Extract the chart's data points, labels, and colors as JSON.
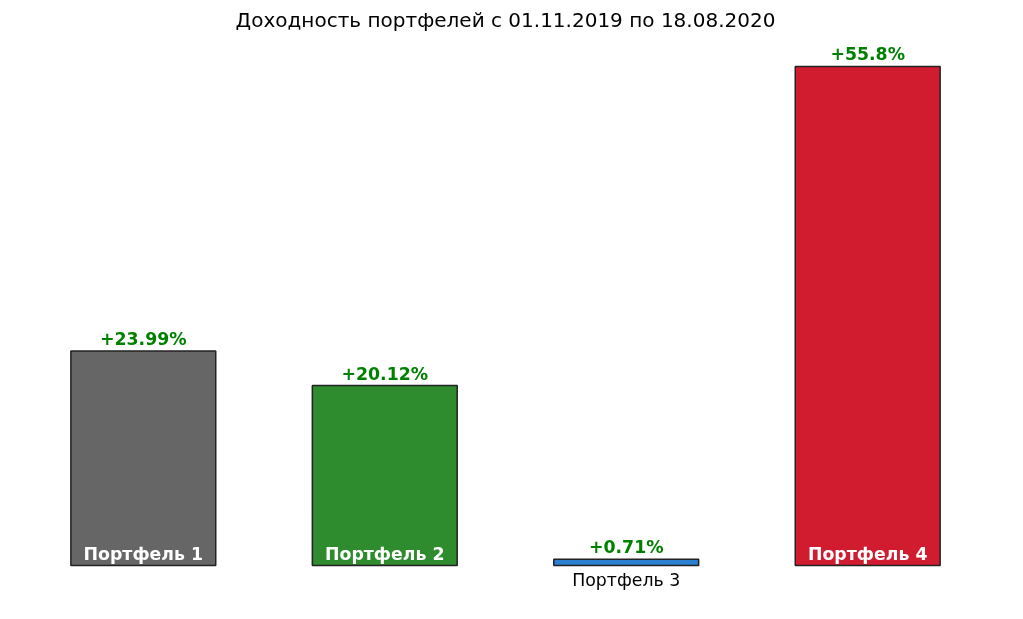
{
  "chart_data": {
    "type": "bar",
    "title": "Доходность портфелей с 01.11.2019 по 18.08.2020",
    "categories": [
      "Портфель 1",
      "Портфель 2",
      "Портфель 3",
      "Портфель 4"
    ],
    "values": [
      23.99,
      20.12,
      0.71,
      55.8
    ],
    "colors": [
      "#666666",
      "#2e8b2e",
      "#2a7fcf",
      "#d01c2e"
    ],
    "value_labels": [
      "+23.99%",
      "+20.12%",
      "+0.71%",
      "+55.8%"
    ],
    "grid": false
  }
}
